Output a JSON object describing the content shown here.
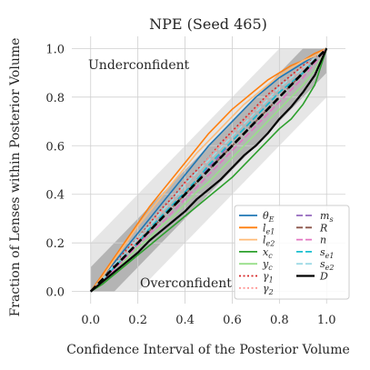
{
  "chart_data": {
    "type": "line",
    "title": "NPE (Seed 465)",
    "xlabel": "Confidence Interval of the Posterior Volume",
    "ylabel": "Fraction of Lenses within Posterior Volume",
    "xlim": [
      -0.08,
      1.08
    ],
    "ylim": [
      -0.05,
      1.05
    ],
    "xticks": [
      "0.0",
      "0.2",
      "0.4",
      "0.6",
      "0.8",
      "1.0"
    ],
    "yticks": [
      "0.0",
      "0.2",
      "0.4",
      "0.6",
      "0.8",
      "1.0"
    ],
    "grid": true,
    "legend_position": "lower-right",
    "annotations": {
      "upper": "Underconfident",
      "lower": "Overconfident"
    },
    "bands": [
      {
        "halfwidth": 0.2,
        "color": "#e6e6e6"
      },
      {
        "halfwidth": 0.1,
        "color": "#b4b4b4"
      }
    ],
    "x": [
      0,
      0.05,
      0.1,
      0.15,
      0.2,
      0.25,
      0.3,
      0.35,
      0.4,
      0.45,
      0.5,
      0.55,
      0.6,
      0.65,
      0.7,
      0.75,
      0.8,
      0.85,
      0.9,
      0.95,
      1.0
    ],
    "series": [
      {
        "name": "θ_E",
        "color": "#1f77b4",
        "style": "solid",
        "values": [
          0,
          0.06,
          0.12,
          0.18,
          0.24,
          0.3,
          0.36,
          0.42,
          0.48,
          0.54,
          0.6,
          0.65,
          0.7,
          0.75,
          0.8,
          0.84,
          0.88,
          0.91,
          0.94,
          0.97,
          1.0
        ]
      },
      {
        "name": "l_e1",
        "color": "#ff7f0e",
        "style": "solid",
        "values": [
          0,
          0.07,
          0.14,
          0.21,
          0.28,
          0.35,
          0.41,
          0.47,
          0.53,
          0.59,
          0.65,
          0.7,
          0.75,
          0.79,
          0.83,
          0.87,
          0.9,
          0.93,
          0.95,
          0.98,
          1.0
        ]
      },
      {
        "name": "l_e2",
        "color": "#ffbb78",
        "style": "solid",
        "values": [
          0,
          0.06,
          0.13,
          0.2,
          0.27,
          0.33,
          0.39,
          0.45,
          0.51,
          0.57,
          0.62,
          0.67,
          0.72,
          0.77,
          0.81,
          0.85,
          0.89,
          0.92,
          0.95,
          0.97,
          1.0
        ]
      },
      {
        "name": "x_c",
        "color": "#2ca02c",
        "style": "solid",
        "values": [
          0,
          0.03,
          0.07,
          0.11,
          0.15,
          0.19,
          0.23,
          0.27,
          0.31,
          0.35,
          0.39,
          0.43,
          0.47,
          0.52,
          0.57,
          0.62,
          0.67,
          0.71,
          0.77,
          0.85,
          1.0
        ]
      },
      {
        "name": "y_c",
        "color": "#98df8a",
        "style": "solid",
        "values": [
          0,
          0.04,
          0.08,
          0.13,
          0.18,
          0.22,
          0.27,
          0.31,
          0.36,
          0.41,
          0.45,
          0.5,
          0.55,
          0.6,
          0.65,
          0.7,
          0.75,
          0.8,
          0.85,
          0.91,
          1.0
        ]
      },
      {
        "name": "γ_1",
        "color": "#d62728",
        "style": "dotted",
        "values": [
          0,
          0.05,
          0.11,
          0.17,
          0.22,
          0.28,
          0.34,
          0.39,
          0.45,
          0.5,
          0.55,
          0.61,
          0.66,
          0.71,
          0.76,
          0.81,
          0.85,
          0.89,
          0.93,
          0.96,
          1.0
        ]
      },
      {
        "name": "γ_2",
        "color": "#ff9896",
        "style": "dotted",
        "values": [
          0,
          0.05,
          0.1,
          0.16,
          0.21,
          0.27,
          0.33,
          0.38,
          0.44,
          0.49,
          0.55,
          0.6,
          0.65,
          0.7,
          0.75,
          0.8,
          0.84,
          0.88,
          0.92,
          0.96,
          1.0
        ]
      },
      {
        "name": "m_s",
        "color": "#9467bd",
        "style": "dashed",
        "values": [
          0,
          0.05,
          0.1,
          0.15,
          0.2,
          0.25,
          0.31,
          0.36,
          0.41,
          0.46,
          0.51,
          0.56,
          0.62,
          0.67,
          0.72,
          0.77,
          0.82,
          0.86,
          0.9,
          0.95,
          1.0
        ]
      },
      {
        "name": "R",
        "color": "#8c564b",
        "style": "dashed",
        "values": [
          0,
          0.05,
          0.1,
          0.15,
          0.2,
          0.25,
          0.3,
          0.35,
          0.4,
          0.45,
          0.5,
          0.55,
          0.6,
          0.65,
          0.7,
          0.75,
          0.8,
          0.85,
          0.9,
          0.95,
          1.0
        ]
      },
      {
        "name": "n",
        "color": "#e377c2",
        "style": "dashed",
        "values": [
          0,
          0.04,
          0.09,
          0.14,
          0.19,
          0.24,
          0.28,
          0.33,
          0.38,
          0.43,
          0.48,
          0.53,
          0.58,
          0.63,
          0.68,
          0.73,
          0.78,
          0.83,
          0.88,
          0.94,
          1.0
        ]
      },
      {
        "name": "s_e1",
        "color": "#17becf",
        "style": "dashed",
        "values": [
          0,
          0.05,
          0.1,
          0.15,
          0.2,
          0.26,
          0.31,
          0.36,
          0.41,
          0.46,
          0.52,
          0.57,
          0.62,
          0.67,
          0.72,
          0.77,
          0.82,
          0.86,
          0.9,
          0.95,
          1.0
        ]
      },
      {
        "name": "s_e2",
        "color": "#9edae5",
        "style": "dashed",
        "values": [
          0,
          0.05,
          0.11,
          0.16,
          0.22,
          0.27,
          0.33,
          0.38,
          0.44,
          0.49,
          0.54,
          0.59,
          0.64,
          0.69,
          0.74,
          0.79,
          0.84,
          0.88,
          0.92,
          0.96,
          1.0
        ]
      },
      {
        "name": "D",
        "color": "#000000",
        "style": "solid",
        "values": [
          0,
          0.04,
          0.08,
          0.12,
          0.16,
          0.21,
          0.25,
          0.29,
          0.33,
          0.38,
          0.42,
          0.46,
          0.51,
          0.56,
          0.6,
          0.65,
          0.71,
          0.76,
          0.82,
          0.89,
          1.0
        ]
      }
    ],
    "reference": {
      "style": "dashed",
      "color": "#000000",
      "values": [
        0,
        1
      ]
    }
  }
}
